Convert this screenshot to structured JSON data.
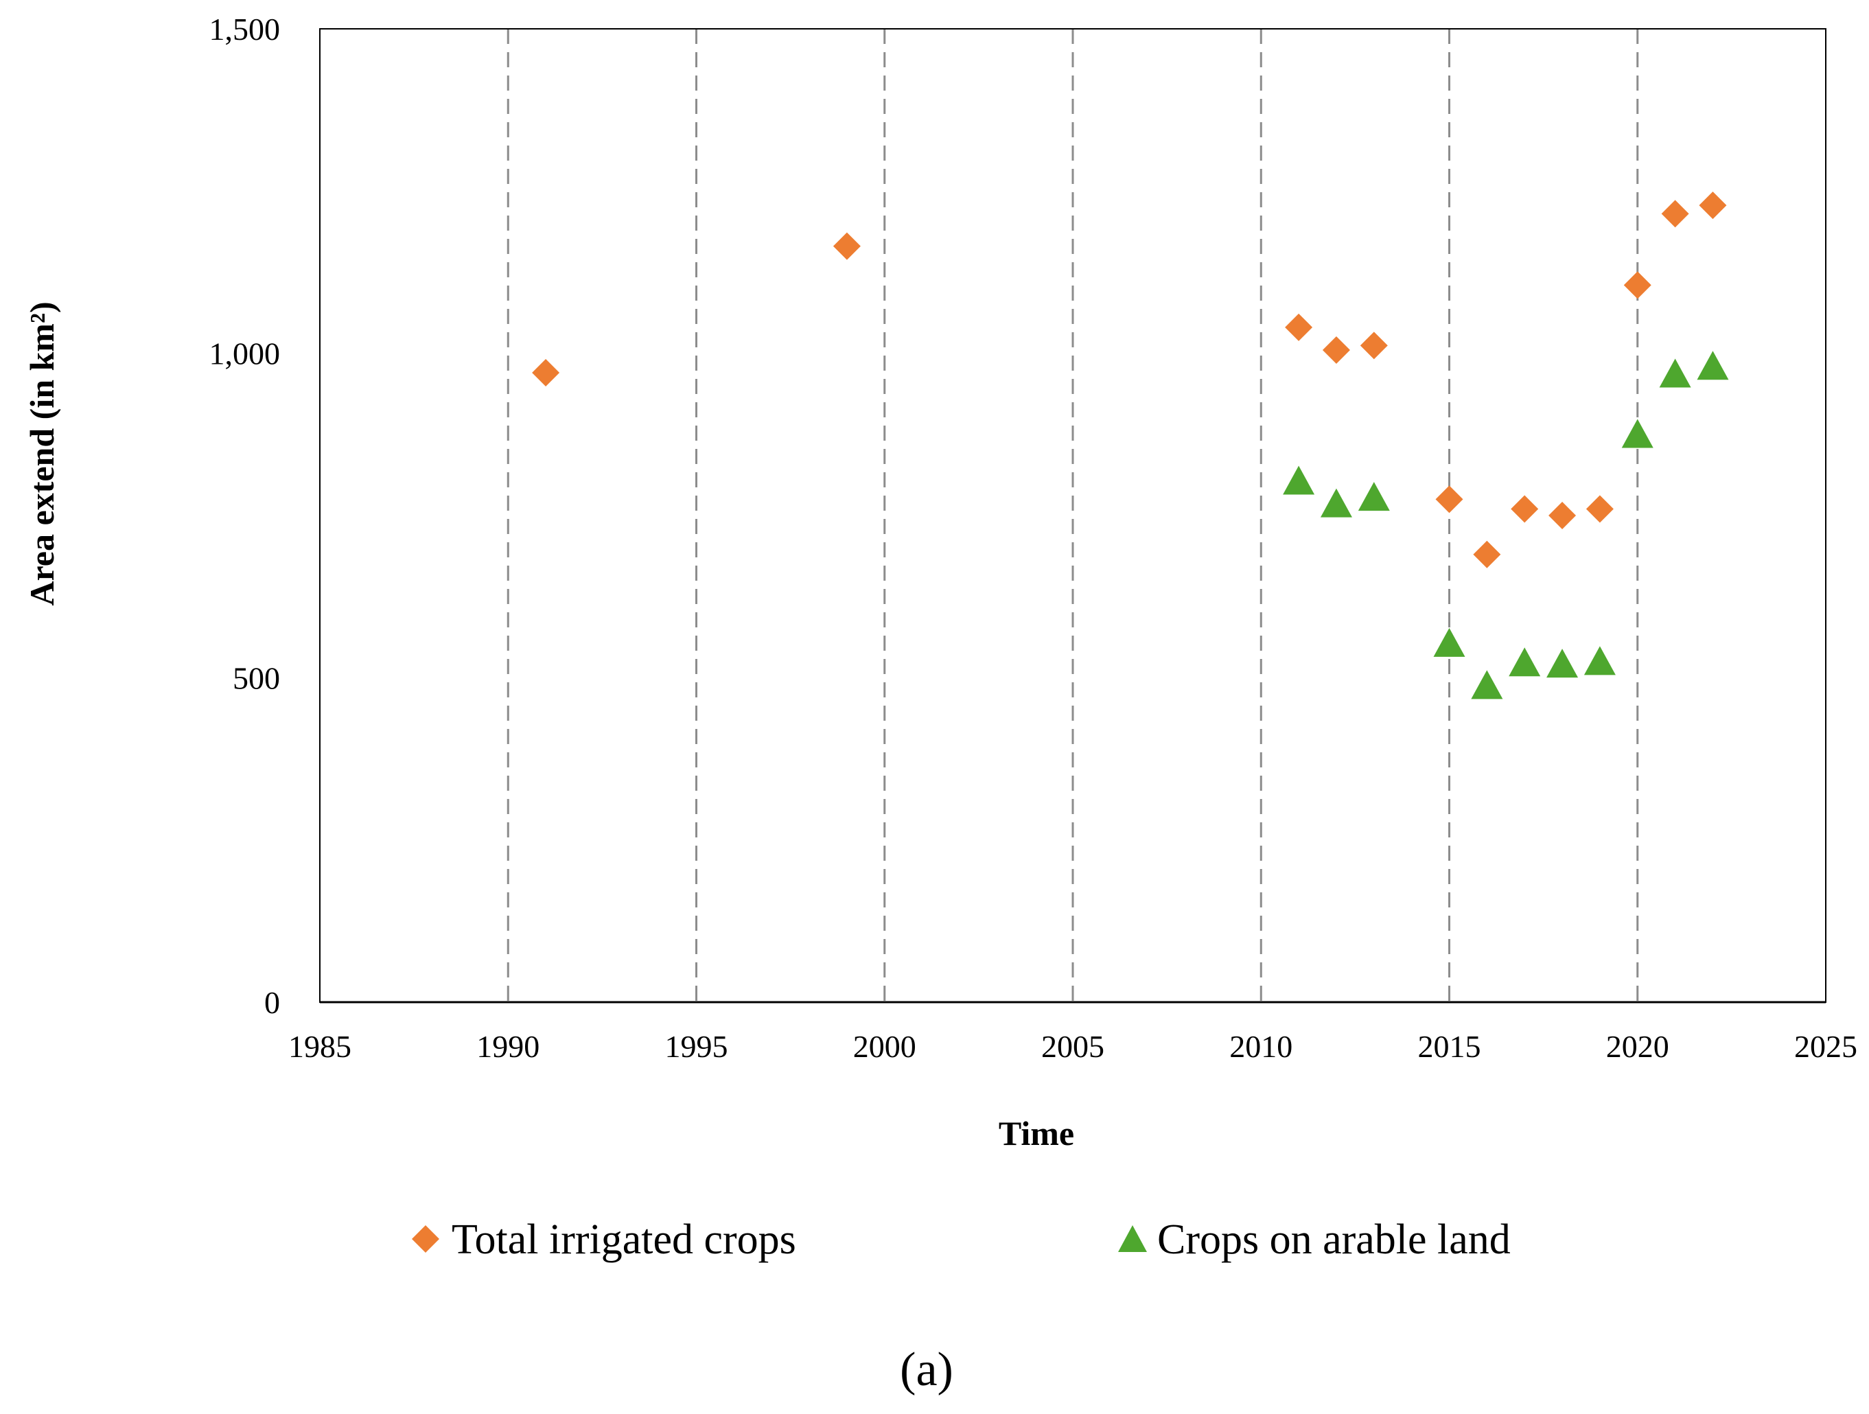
{
  "chart_data": {
    "type": "scatter",
    "title": "",
    "xlabel": "Time",
    "ylabel": "Area extend (in km²)",
    "xlim": [
      1985,
      2025
    ],
    "ylim": [
      0,
      1500
    ],
    "x_ticks": [
      1985,
      1990,
      1995,
      2000,
      2005,
      2010,
      2015,
      2020,
      2025
    ],
    "x_tick_labels": [
      "1985",
      "1990",
      "1995",
      "2000",
      "2005",
      "2010",
      "2015",
      "2020",
      "2025"
    ],
    "y_ticks": [
      0,
      500,
      1000,
      1500
    ],
    "y_tick_labels": [
      "0",
      "500",
      "1,000",
      "1,500"
    ],
    "vertical_dashed_gridlines": [
      1990,
      1995,
      2000,
      2005,
      2010,
      2015,
      2020
    ],
    "legend_position": "bottom",
    "caption": "(a)",
    "series": [
      {
        "name": "Total irrigated crops",
        "marker": "diamond",
        "color": "#ED7D31",
        "x": [
          1991,
          1999,
          2011,
          2012,
          2013,
          2015,
          2016,
          2017,
          2018,
          2019,
          2020,
          2021,
          2022
        ],
        "y": [
          970,
          1165,
          1040,
          1005,
          1012,
          775,
          690,
          760,
          750,
          760,
          1105,
          1215,
          1228
        ]
      },
      {
        "name": "Crops on arable land",
        "marker": "triangle",
        "color": "#4EA72E",
        "x": [
          2011,
          2012,
          2013,
          2015,
          2016,
          2017,
          2018,
          2019,
          2020,
          2021,
          2022
        ],
        "y": [
          800,
          765,
          775,
          550,
          485,
          520,
          518,
          522,
          872,
          965,
          977
        ]
      }
    ]
  }
}
